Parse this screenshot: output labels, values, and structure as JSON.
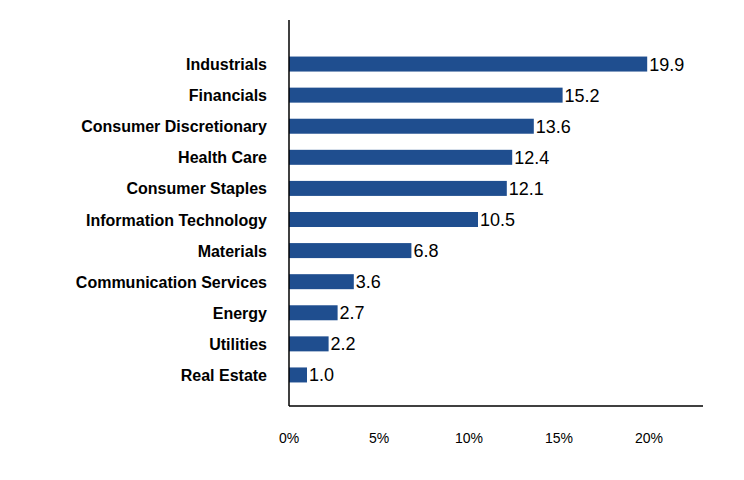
{
  "chart_data": {
    "type": "bar",
    "orientation": "horizontal",
    "categories": [
      "Industrials",
      "Financials",
      "Consumer Discretionary",
      "Health Care",
      "Consumer Staples",
      "Information Technology",
      "Materials",
      "Communication Services",
      "Energy",
      "Utilities",
      "Real Estate"
    ],
    "values": [
      19.9,
      15.2,
      13.6,
      12.4,
      12.1,
      10.5,
      6.8,
      3.6,
      2.7,
      2.2,
      1.0
    ],
    "value_labels": [
      "19.9",
      "15.2",
      "13.6",
      "12.4",
      "12.1",
      "10.5",
      "6.8",
      "3.6",
      "2.7",
      "2.2",
      "1.0"
    ],
    "color": "#1f4e8f",
    "xlim": [
      0,
      23
    ],
    "xticks": [
      {
        "value": 0,
        "label": "0%"
      },
      {
        "value": 5,
        "label": "5%"
      },
      {
        "value": 10,
        "label": "10%"
      },
      {
        "value": 15,
        "label": "15%"
      },
      {
        "value": 20,
        "label": "20%"
      }
    ],
    "grid": false,
    "data_labels": true
  }
}
